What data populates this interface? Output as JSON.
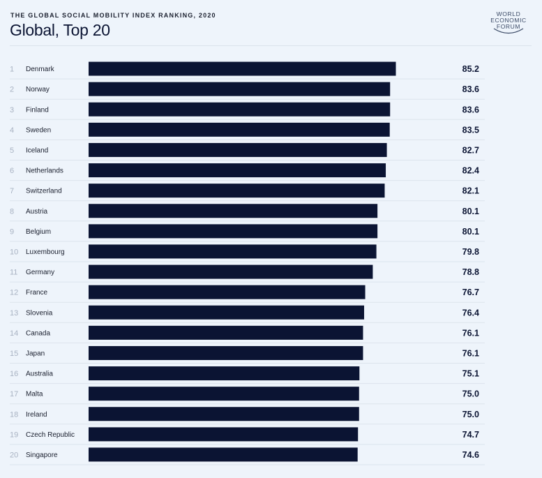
{
  "header": {
    "supertitle": "THE GLOBAL SOCIAL MOBILITY INDEX RANKING, 2020",
    "title": "Global, Top 20"
  },
  "logo": {
    "lines": [
      "WORLD",
      "ECONOMIC",
      "FORUM"
    ]
  },
  "colors": {
    "bar": "#0b1433",
    "background": "#eef4fb",
    "divider": "#dbe3ec"
  },
  "chart_data": {
    "type": "bar",
    "orientation": "horizontal",
    "title": "Global, Top 20",
    "grid": false,
    "ranks": [
      "1",
      "2",
      "3",
      "4",
      "5",
      "6",
      "7",
      "8",
      "9",
      "10",
      "11",
      "12",
      "13",
      "14",
      "15",
      "16",
      "17",
      "18",
      "19",
      "20"
    ],
    "categories": [
      "Denmark",
      "Norway",
      "Finland",
      "Sweden",
      "Iceland",
      "Netherlands",
      "Switzerland",
      "Austria",
      "Belgium",
      "Luxembourg",
      "Germany",
      "France",
      "Slovenia",
      "Canada",
      "Japan",
      "Australia",
      "Malta",
      "Ireland",
      "Czech Republic",
      "Singapore"
    ],
    "values": [
      85.2,
      83.6,
      83.6,
      83.5,
      82.7,
      82.4,
      82.1,
      80.1,
      80.1,
      79.8,
      78.8,
      76.7,
      76.4,
      76.1,
      76.1,
      75.1,
      75.0,
      75.0,
      74.7,
      74.6
    ],
    "value_labels": [
      "85.2",
      "83.6",
      "83.6",
      "83.5",
      "82.7",
      "82.4",
      "82.1",
      "80.1",
      "80.1",
      "79.8",
      "78.8",
      "76.7",
      "76.4",
      "76.1",
      "76.1",
      "75.1",
      "75.0",
      "75.0",
      "74.7",
      "74.6"
    ],
    "xlim": [
      0,
      85.2
    ]
  }
}
